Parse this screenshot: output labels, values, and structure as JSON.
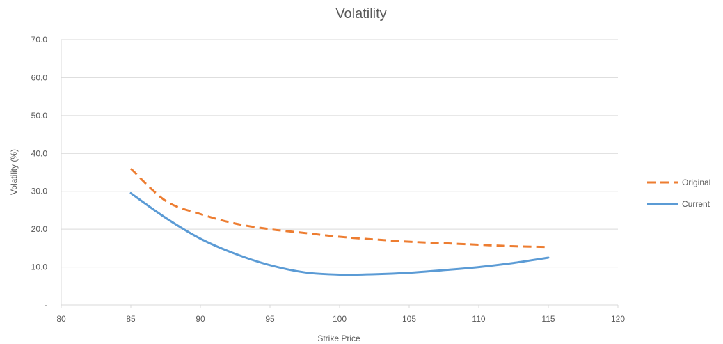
{
  "chart_data": {
    "type": "line",
    "title": "Volatility",
    "xlabel": "Strike Price",
    "ylabel": "Volatility (%)",
    "xlim": [
      80,
      120
    ],
    "ylim": [
      0,
      70
    ],
    "x_ticks": [
      80,
      85,
      90,
      95,
      100,
      105,
      110,
      115,
      120
    ],
    "x_tick_labels": [
      "80",
      "85",
      "90",
      "95",
      "100",
      "105",
      "110",
      "115",
      "120"
    ],
    "y_ticks": [
      0,
      10,
      20,
      30,
      40,
      50,
      60,
      70
    ],
    "y_tick_labels": [
      "-",
      "10.0",
      "20.0",
      "30.0",
      "40.0",
      "50.0",
      "60.0",
      "70.0"
    ],
    "grid": true,
    "legend_position": "right",
    "series": [
      {
        "name": "Original",
        "color": "#ed7d31",
        "dash": "dashed",
        "x": [
          85,
          87.5,
          90,
          92.5,
          95,
          97.5,
          100,
          102.5,
          105,
          107.5,
          110,
          112.5,
          115
        ],
        "y": [
          36.0,
          27.5,
          24.0,
          21.5,
          20.0,
          19.0,
          18.0,
          17.3,
          16.7,
          16.3,
          15.9,
          15.5,
          15.3
        ]
      },
      {
        "name": "Current",
        "color": "#5b9bd5",
        "dash": "solid",
        "x": [
          85,
          87.5,
          90,
          92.5,
          95,
          97.5,
          100,
          102.5,
          105,
          107.5,
          110,
          112.5,
          115
        ],
        "y": [
          29.5,
          23.0,
          17.5,
          13.5,
          10.5,
          8.6,
          8.0,
          8.1,
          8.5,
          9.2,
          10.0,
          11.1,
          12.5
        ]
      }
    ]
  }
}
